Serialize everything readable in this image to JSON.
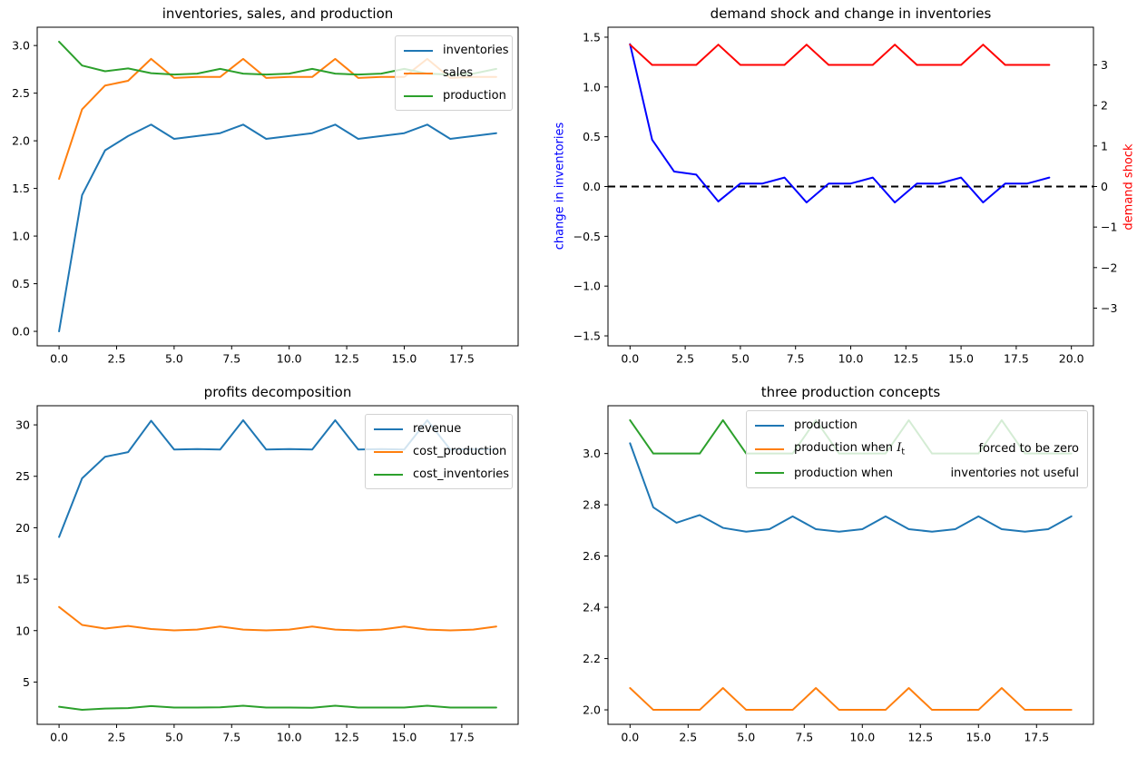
{
  "figure": {
    "background": "#ffffff"
  },
  "palette": {
    "mpl_blue": "#1f77b4",
    "mpl_orange": "#ff7f0e",
    "mpl_green": "#2ca02c",
    "pure_blue": "#0000ff",
    "pure_red": "#ff0000",
    "black": "#000000"
  },
  "chart_data": [
    {
      "id": "tl",
      "type": "line",
      "title": "inventories, sales, and production",
      "xlabel": "",
      "ylabel": "",
      "grid": false,
      "x": [
        0,
        1,
        2,
        3,
        4,
        5,
        6,
        7,
        8,
        9,
        10,
        11,
        12,
        13,
        14,
        15,
        16,
        17,
        18,
        19
      ],
      "xlim": [
        -0.95,
        19.95
      ],
      "ylim": [
        -0.152,
        3.192
      ],
      "xticks": {
        "values": [
          0,
          2.5,
          5,
          7.5,
          10,
          12.5,
          15,
          17.5
        ],
        "labels": [
          "0.0",
          "2.5",
          "5.0",
          "7.5",
          "10.0",
          "12.5",
          "15.0",
          "17.5"
        ]
      },
      "yticks": {
        "values": [
          0,
          0.5,
          1,
          1.5,
          2,
          2.5,
          3
        ],
        "labels": [
          "0.0",
          "0.5",
          "1.0",
          "1.5",
          "2.0",
          "2.5",
          "3.0"
        ]
      },
      "legend": {
        "position": "upper right"
      },
      "series": [
        {
          "name": "inventories",
          "color": "#1f77b4",
          "values": [
            0.0,
            1.43,
            1.9,
            2.05,
            2.17,
            2.02,
            2.05,
            2.08,
            2.17,
            2.02,
            2.05,
            2.08,
            2.17,
            2.02,
            2.05,
            2.08,
            2.17,
            2.02,
            2.05,
            2.08
          ]
        },
        {
          "name": "sales",
          "color": "#ff7f0e",
          "values": [
            1.6,
            2.33,
            2.58,
            2.63,
            2.86,
            2.66,
            2.67,
            2.67,
            2.86,
            2.66,
            2.67,
            2.67,
            2.86,
            2.66,
            2.67,
            2.67,
            2.86,
            2.66,
            2.67,
            2.67
          ]
        },
        {
          "name": "production",
          "color": "#2ca02c",
          "values": [
            3.04,
            2.79,
            2.73,
            2.76,
            2.71,
            2.695,
            2.705,
            2.755,
            2.705,
            2.695,
            2.705,
            2.755,
            2.705,
            2.695,
            2.705,
            2.755,
            2.705,
            2.695,
            2.705,
            2.755
          ]
        }
      ]
    },
    {
      "id": "tr",
      "type": "line",
      "title": "demand shock and change in inventories",
      "grid": false,
      "x": [
        0,
        1,
        2,
        3,
        4,
        5,
        6,
        7,
        8,
        9,
        10,
        11,
        12,
        13,
        14,
        15,
        16,
        17,
        18,
        19
      ],
      "xlim": [
        -1.0,
        21.0
      ],
      "xticks": {
        "values": [
          0,
          2.5,
          5,
          7.5,
          10,
          12.5,
          15,
          17.5,
          20
        ],
        "labels": [
          "0.0",
          "2.5",
          "5.0",
          "7.5",
          "10.0",
          "12.5",
          "15.0",
          "17.5",
          "20.0"
        ]
      },
      "yaxis_left": {
        "label": "change in inventories",
        "label_color": "#0000ff",
        "lim": [
          -1.6,
          1.6
        ],
        "ticks": {
          "values": [
            -1.5,
            -1.0,
            -0.5,
            0,
            0.5,
            1.0,
            1.5
          ],
          "labels": [
            "−1.5",
            "−1.0",
            "−0.5",
            "0.0",
            "0.5",
            "1.0",
            "1.5"
          ]
        }
      },
      "yaxis_right": {
        "label": "demand shock",
        "label_color": "#ff0000",
        "lim": [
          -3.93,
          3.93
        ],
        "ticks": {
          "values": [
            -3,
            -2,
            -1,
            0,
            1,
            2,
            3
          ],
          "labels": [
            "−3",
            "−2",
            "−1",
            "0",
            "1",
            "2",
            "3"
          ]
        }
      },
      "axhline": {
        "y": 0,
        "color": "#000000",
        "style": "dashed"
      },
      "series": [
        {
          "name": "change in inventories",
          "axis": "left",
          "color": "#0000ff",
          "values": [
            1.43,
            0.47,
            0.15,
            0.12,
            -0.15,
            0.03,
            0.03,
            0.09,
            -0.16,
            0.03,
            0.03,
            0.09,
            -0.16,
            0.03,
            0.03,
            0.09,
            -0.16,
            0.03,
            0.03,
            0.09
          ]
        },
        {
          "name": "demand shock",
          "axis": "right",
          "color": "#ff0000",
          "values": [
            3.5,
            3,
            3,
            3,
            3.5,
            3,
            3,
            3,
            3.5,
            3,
            3,
            3,
            3.5,
            3,
            3,
            3,
            3.5,
            3,
            3,
            3
          ]
        }
      ]
    },
    {
      "id": "bl",
      "type": "line",
      "title": "profits decomposition",
      "grid": false,
      "x": [
        0,
        1,
        2,
        3,
        4,
        5,
        6,
        7,
        8,
        9,
        10,
        11,
        12,
        13,
        14,
        15,
        16,
        17,
        18,
        19
      ],
      "xlim": [
        -0.95,
        19.95
      ],
      "ylim": [
        0.89,
        31.86
      ],
      "xticks": {
        "values": [
          0,
          2.5,
          5,
          7.5,
          10,
          12.5,
          15,
          17.5
        ],
        "labels": [
          "0.0",
          "2.5",
          "5.0",
          "7.5",
          "10.0",
          "12.5",
          "15.0",
          "17.5"
        ]
      },
      "yticks": {
        "values": [
          5,
          10,
          15,
          20,
          25,
          30
        ],
        "labels": [
          "5",
          "10",
          "15",
          "20",
          "25",
          "30"
        ]
      },
      "legend": {
        "position": "upper right"
      },
      "series": [
        {
          "name": "revenue",
          "color": "#1f77b4",
          "values": [
            19.1,
            24.8,
            26.9,
            27.35,
            30.4,
            27.6,
            27.65,
            27.6,
            30.45,
            27.6,
            27.65,
            27.6,
            30.45,
            27.6,
            27.65,
            27.6,
            30.45,
            27.6,
            27.65,
            27.6
          ]
        },
        {
          "name": "cost_production",
          "color": "#ff7f0e",
          "values": [
            12.3,
            10.55,
            10.2,
            10.45,
            10.15,
            10.02,
            10.1,
            10.4,
            10.1,
            10.02,
            10.1,
            10.4,
            10.1,
            10.02,
            10.1,
            10.4,
            10.1,
            10.02,
            10.1,
            10.4
          ]
        },
        {
          "name": "cost_inventories",
          "color": "#2ca02c",
          "values": [
            2.6,
            2.3,
            2.42,
            2.47,
            2.67,
            2.52,
            2.52,
            2.54,
            2.7,
            2.52,
            2.52,
            2.5,
            2.7,
            2.52,
            2.52,
            2.52,
            2.7,
            2.52,
            2.52,
            2.52
          ]
        }
      ]
    },
    {
      "id": "br",
      "type": "line",
      "title": "three production concepts",
      "grid": false,
      "x": [
        0,
        1,
        2,
        3,
        4,
        5,
        6,
        7,
        8,
        9,
        10,
        11,
        12,
        13,
        14,
        15,
        16,
        17,
        18,
        19
      ],
      "xlim": [
        -0.95,
        19.95
      ],
      "ylim": [
        1.9435,
        3.1865
      ],
      "xticks": {
        "values": [
          0,
          2.5,
          5,
          7.5,
          10,
          12.5,
          15,
          17.5
        ],
        "labels": [
          "0.0",
          "2.5",
          "5.0",
          "7.5",
          "10.0",
          "12.5",
          "15.0",
          "17.5"
        ]
      },
      "yticks": {
        "values": [
          2.0,
          2.2,
          2.4,
          2.6,
          2.8,
          3.0
        ],
        "labels": [
          "2.0",
          "2.2",
          "2.4",
          "2.6",
          "2.8",
          "3.0"
        ]
      },
      "legend": {
        "position": "upper right"
      },
      "series": [
        {
          "name": "production",
          "color": "#1f77b4",
          "legend": {
            "text": "production"
          },
          "values": [
            3.04,
            2.79,
            2.73,
            2.76,
            2.71,
            2.695,
            2.705,
            2.755,
            2.705,
            2.695,
            2.705,
            2.755,
            2.705,
            2.695,
            2.705,
            2.755,
            2.705,
            2.695,
            2.705,
            2.755
          ]
        },
        {
          "name": "production when I_t forced to be zero",
          "color": "#ff7f0e",
          "legend": {
            "text": "production when $I_t$",
            "text2": "forced to be zero"
          },
          "values": [
            2.085,
            2.0,
            2.0,
            2.0,
            2.085,
            2.0,
            2.0,
            2.0,
            2.085,
            2.0,
            2.0,
            2.0,
            2.085,
            2.0,
            2.0,
            2.0,
            2.085,
            2.0,
            2.0,
            2.0
          ]
        },
        {
          "name": "production when inventories not useful",
          "color": "#2ca02c",
          "legend": {
            "text": "production when",
            "text2": "inventories not useful"
          },
          "values": [
            3.13,
            3.0,
            3.0,
            3.0,
            3.13,
            3.0,
            3.0,
            3.0,
            3.13,
            3.0,
            3.0,
            3.0,
            3.13,
            3.0,
            3.0,
            3.0,
            3.13,
            3.0,
            3.0,
            3.0
          ]
        }
      ]
    }
  ]
}
